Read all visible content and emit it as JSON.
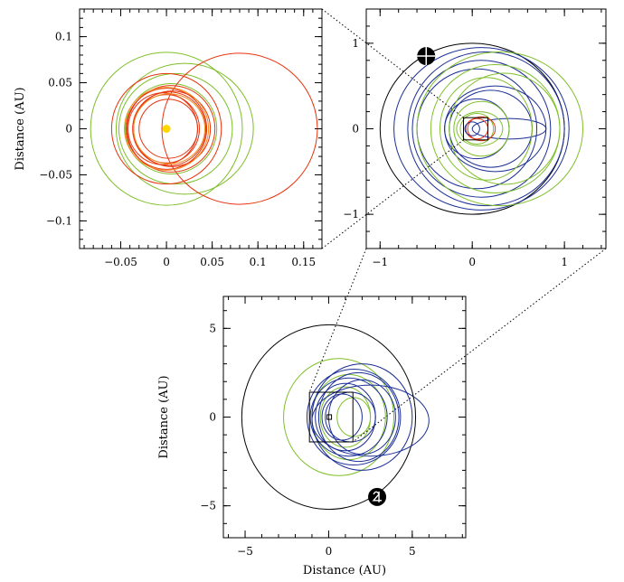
{
  "chart_data": [
    {
      "type": "scatter",
      "panel": "top-left",
      "xlim": [
        -0.095,
        0.17
      ],
      "ylim": [
        -0.13,
        0.13
      ],
      "xticks": [
        -0.05,
        0,
        0.05,
        0.1,
        0.15
      ],
      "yticks": [
        -0.1,
        -0.05,
        0,
        0.05,
        0.1
      ],
      "xtick_labels": [
        "−0.05",
        "0",
        "0.05",
        "0.1",
        "0.15"
      ],
      "ytick_labels": [
        "−0.1",
        "−0.05",
        "0",
        "0.05",
        "0.1"
      ],
      "xlabel": "",
      "ylabel": "Distance (AU)",
      "markers": [
        {
          "x": 0,
          "y": 0,
          "color": "#ffd700",
          "kind": "star"
        }
      ],
      "orbits": [
        {
          "cx": 0.0,
          "cy": 0.0,
          "rx": 0.083,
          "ry": 0.083,
          "color": "#7fbf2a"
        },
        {
          "cx": 0.02,
          "cy": 0.0,
          "rx": 0.075,
          "ry": 0.071,
          "color": "#7fbf2a"
        },
        {
          "cx": 0.01,
          "cy": 0.0,
          "rx": 0.062,
          "ry": 0.06,
          "color": "#7fbf2a"
        },
        {
          "cx": 0.005,
          "cy": 0.0,
          "rx": 0.05,
          "ry": 0.049,
          "color": "#7fbf2a"
        },
        {
          "cx": 0.08,
          "cy": 0.0,
          "rx": 0.085,
          "ry": 0.082,
          "color": "#e8340e"
        },
        {
          "cx": 0.0,
          "cy": 0.0,
          "rx": 0.06,
          "ry": 0.06,
          "color": "#e8340e"
        },
        {
          "cx": 0.005,
          "cy": 0.0,
          "rx": 0.048,
          "ry": 0.047,
          "color": "#e8340e"
        },
        {
          "cx": 0.0,
          "cy": 0.0,
          "rx": 0.044,
          "ry": 0.044,
          "color": "#e8340e"
        },
        {
          "cx": 0.003,
          "cy": 0.0,
          "rx": 0.04,
          "ry": 0.04,
          "color": "#e8340e"
        },
        {
          "cx": 0.0,
          "cy": 0.0,
          "rx": 0.036,
          "ry": 0.037,
          "color": "#e8340e"
        },
        {
          "cx": 0.006,
          "cy": 0.0,
          "rx": 0.042,
          "ry": 0.041,
          "color": "#e8340e"
        },
        {
          "cx": -0.004,
          "cy": 0.0,
          "rx": 0.038,
          "ry": 0.039,
          "color": "#e8340e"
        },
        {
          "cx": 0.002,
          "cy": 0.0,
          "rx": 0.032,
          "ry": 0.032,
          "color": "#e8340e"
        },
        {
          "cx": 0.0,
          "cy": 0.0,
          "rx": 0.046,
          "ry": 0.045,
          "color": "#f09020"
        },
        {
          "cx": 0.003,
          "cy": 0.0,
          "rx": 0.039,
          "ry": 0.038,
          "color": "#f09020"
        }
      ]
    },
    {
      "type": "scatter",
      "panel": "top-right",
      "xlim": [
        -1.15,
        1.45
      ],
      "ylim": [
        -1.4,
        1.4
      ],
      "xticks": [
        -1,
        0,
        1
      ],
      "yticks": [
        -1,
        0,
        1
      ],
      "xtick_labels": [
        "−1",
        "0",
        "1"
      ],
      "ytick_labels": [
        "−1",
        "0",
        "1"
      ],
      "xlabel": "",
      "ylabel": "",
      "inset_box": {
        "x0": -0.095,
        "x1": 0.17,
        "y0": -0.13,
        "y1": 0.13
      },
      "markers": [
        {
          "x": -0.5,
          "y": 0.85,
          "color": "#000000",
          "kind": "planet"
        }
      ],
      "orbits": [
        {
          "cx": 0.0,
          "cy": 0.0,
          "rx": 1.0,
          "ry": 1.0,
          "color": "#000000"
        },
        {
          "cx": 0.1,
          "cy": 0.0,
          "rx": 0.95,
          "ry": 0.95,
          "color": "#1b2e96"
        },
        {
          "cx": 0.15,
          "cy": 0.0,
          "rx": 0.85,
          "ry": 0.9,
          "color": "#1b2e96"
        },
        {
          "cx": 0.1,
          "cy": 0.0,
          "rx": 0.75,
          "ry": 0.8,
          "color": "#1b2e96"
        },
        {
          "cx": 0.05,
          "cy": 0.0,
          "rx": 0.65,
          "ry": 0.7,
          "color": "#1b2e96"
        },
        {
          "cx": 0.25,
          "cy": 0.0,
          "rx": 0.55,
          "ry": 0.5,
          "color": "#1b2e96"
        },
        {
          "cx": 0.2,
          "cy": 0.0,
          "rx": 0.45,
          "ry": 0.45,
          "color": "#1b2e96"
        },
        {
          "cx": 0.05,
          "cy": 0.0,
          "rx": 0.35,
          "ry": 0.35,
          "color": "#1b2e96"
        },
        {
          "cx": 0.4,
          "cy": 0.0,
          "rx": 0.4,
          "ry": 0.12,
          "color": "#1b2e96"
        },
        {
          "cx": 0.3,
          "cy": 0.0,
          "rx": 0.9,
          "ry": 0.9,
          "color": "#7fbf2a"
        },
        {
          "cx": 0.25,
          "cy": 0.0,
          "rx": 0.7,
          "ry": 0.75,
          "color": "#7fbf2a"
        },
        {
          "cx": 0.35,
          "cy": 0.0,
          "rx": 0.6,
          "ry": 0.65,
          "color": "#7fbf2a"
        },
        {
          "cx": 0.15,
          "cy": 0.0,
          "rx": 0.5,
          "ry": 0.6,
          "color": "#7fbf2a"
        },
        {
          "cx": 0.1,
          "cy": 0.0,
          "rx": 0.3,
          "ry": 0.32,
          "color": "#7fbf2a"
        },
        {
          "cx": 0.05,
          "cy": 0.0,
          "rx": 0.18,
          "ry": 0.18,
          "color": "#7fbf2a"
        },
        {
          "cx": 0.08,
          "cy": 0.0,
          "rx": 0.25,
          "ry": 0.2,
          "color": "#7fbf2a"
        },
        {
          "cx": 0.05,
          "cy": 0.0,
          "rx": 0.12,
          "ry": 0.12,
          "color": "#e8340e"
        },
        {
          "cx": 0.1,
          "cy": 0.0,
          "rx": 0.15,
          "ry": 0.14,
          "color": "#e8340e"
        },
        {
          "cx": 0.0,
          "cy": 0.0,
          "rx": 0.08,
          "ry": 0.08,
          "color": "#1b2e96"
        }
      ]
    },
    {
      "type": "scatter",
      "panel": "bottom",
      "xlim": [
        -6.3,
        8.2
      ],
      "ylim": [
        -6.8,
        6.8
      ],
      "xticks": [
        -5,
        0,
        5
      ],
      "yticks": [
        -5,
        0,
        5
      ],
      "xtick_labels": [
        "−5",
        "0",
        "5"
      ],
      "ytick_labels": [
        "−5",
        "0",
        "5"
      ],
      "xlabel": "Distance (AU)",
      "ylabel": "Distance (AU)",
      "inset_box": {
        "x0": -1.15,
        "x1": 1.45,
        "y0": -1.4,
        "y1": 1.4
      },
      "tiny_box": {
        "x0": -0.095,
        "x1": 0.17,
        "y0": -0.13,
        "y1": 0.13
      },
      "markers": [
        {
          "x": 2.9,
          "y": -4.5,
          "color": "#000000",
          "kind": "planet"
        }
      ],
      "orbits": [
        {
          "cx": 0.0,
          "cy": 0.0,
          "rx": 5.2,
          "ry": 5.2,
          "color": "#000000"
        },
        {
          "cx": 0.6,
          "cy": 0.0,
          "rx": 3.3,
          "ry": 3.3,
          "color": "#7fbf2a"
        },
        {
          "cx": 1.2,
          "cy": 0.0,
          "rx": 2.2,
          "ry": 2.4,
          "color": "#7fbf2a"
        },
        {
          "cx": 1.0,
          "cy": 0.0,
          "rx": 1.5,
          "ry": 1.7,
          "color": "#7fbf2a"
        },
        {
          "cx": 1.5,
          "cy": 0.0,
          "rx": 1.0,
          "ry": 1.1,
          "color": "#7fbf2a"
        },
        {
          "cx": 2.0,
          "cy": 0.0,
          "rx": 3.0,
          "ry": 3.0,
          "color": "#1b2e96"
        },
        {
          "cx": 1.5,
          "cy": 0.0,
          "rx": 2.8,
          "ry": 2.7,
          "color": "#1b2e96"
        },
        {
          "cx": 1.8,
          "cy": 0.0,
          "rx": 2.4,
          "ry": 2.5,
          "color": "#1b2e96"
        },
        {
          "cx": 1.2,
          "cy": 0.0,
          "rx": 2.3,
          "ry": 2.2,
          "color": "#1b2e96"
        },
        {
          "cx": 2.0,
          "cy": 0.0,
          "rx": 2.0,
          "ry": 2.1,
          "color": "#1b2e96"
        },
        {
          "cx": 1.0,
          "cy": 0.0,
          "rx": 1.8,
          "ry": 1.9,
          "color": "#1b2e96"
        },
        {
          "cx": 1.3,
          "cy": 0.0,
          "rx": 1.5,
          "ry": 1.4,
          "color": "#1b2e96"
        },
        {
          "cx": 0.8,
          "cy": 0.0,
          "rx": 1.2,
          "ry": 1.3,
          "color": "#1b2e96"
        },
        {
          "cx": 2.5,
          "cy": -0.2,
          "rx": 3.5,
          "ry": 2.0,
          "color": "#1b2e96"
        }
      ]
    }
  ],
  "icons": {
    "star": "yellow-dot",
    "planet": "planet-symbol"
  }
}
